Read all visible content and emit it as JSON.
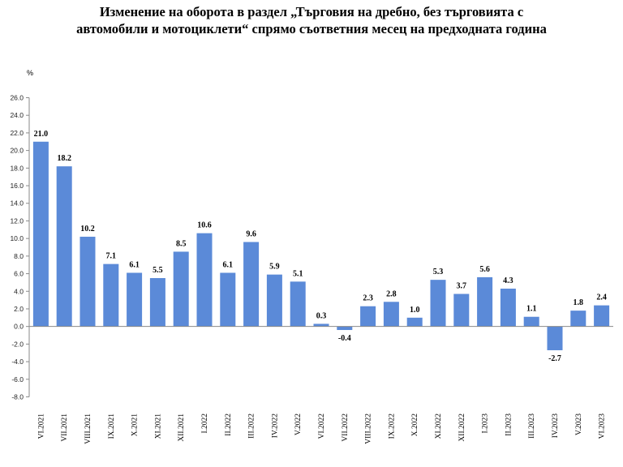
{
  "chart_data": {
    "type": "bar",
    "title_line1": "Изменение на оборота в раздел „Търговия на дребно, без търговията с",
    "title_line2": "автомобили и мотоциклети“ спрямо съответния месец на предходната година",
    "ylabel": "%",
    "xlabel": "",
    "ylim": [
      -8.0,
      26.0
    ],
    "ytick_step": 2.0,
    "bar_color": "#5b8ad8",
    "grid": false,
    "categories": [
      "VI.2021",
      "VII.2021",
      "VIII.2021",
      "IX.2021",
      "X.2021",
      "XI.2021",
      "XII.2021",
      "I.2022",
      "II.2022",
      "III.2022",
      "IV.2022",
      "V.2022",
      "VI.2022",
      "VII.2022",
      "VIII.2022",
      "IX.2022",
      "X.2022",
      "XI.2022",
      "XII.2022",
      "I.2023",
      "II.2023",
      "III.2023",
      "IV.2023",
      "V.2023",
      "VI.2023"
    ],
    "values": [
      21.0,
      18.2,
      10.2,
      7.1,
      6.1,
      5.5,
      8.5,
      10.6,
      6.1,
      9.6,
      5.9,
      5.1,
      0.3,
      -0.4,
      2.3,
      2.8,
      1.0,
      5.3,
      3.7,
      5.6,
      4.3,
      1.1,
      -2.7,
      1.8,
      2.4
    ],
    "data_labels": [
      "21.0",
      "18.2",
      "10.2",
      "7.1",
      "6.1",
      "5.5",
      "8.5",
      "10.6",
      "6.1",
      "9.6",
      "5.9",
      "5.1",
      "0.3",
      "-0.4",
      "2.3",
      "2.8",
      "1.0",
      "5.3",
      "3.7",
      "5.6",
      "4.3",
      "1.1",
      "-2.7",
      "1.8",
      "2.4"
    ],
    "ytick_labels": [
      "26.0",
      "24.0",
      "22.0",
      "20.0",
      "18.0",
      "16.0",
      "14.0",
      "12.0",
      "10.0",
      "8.0",
      "6.0",
      "4.0",
      "2.0",
      "0.0",
      "-2.0",
      "-4.0",
      "-6.0",
      "-8.0"
    ]
  }
}
